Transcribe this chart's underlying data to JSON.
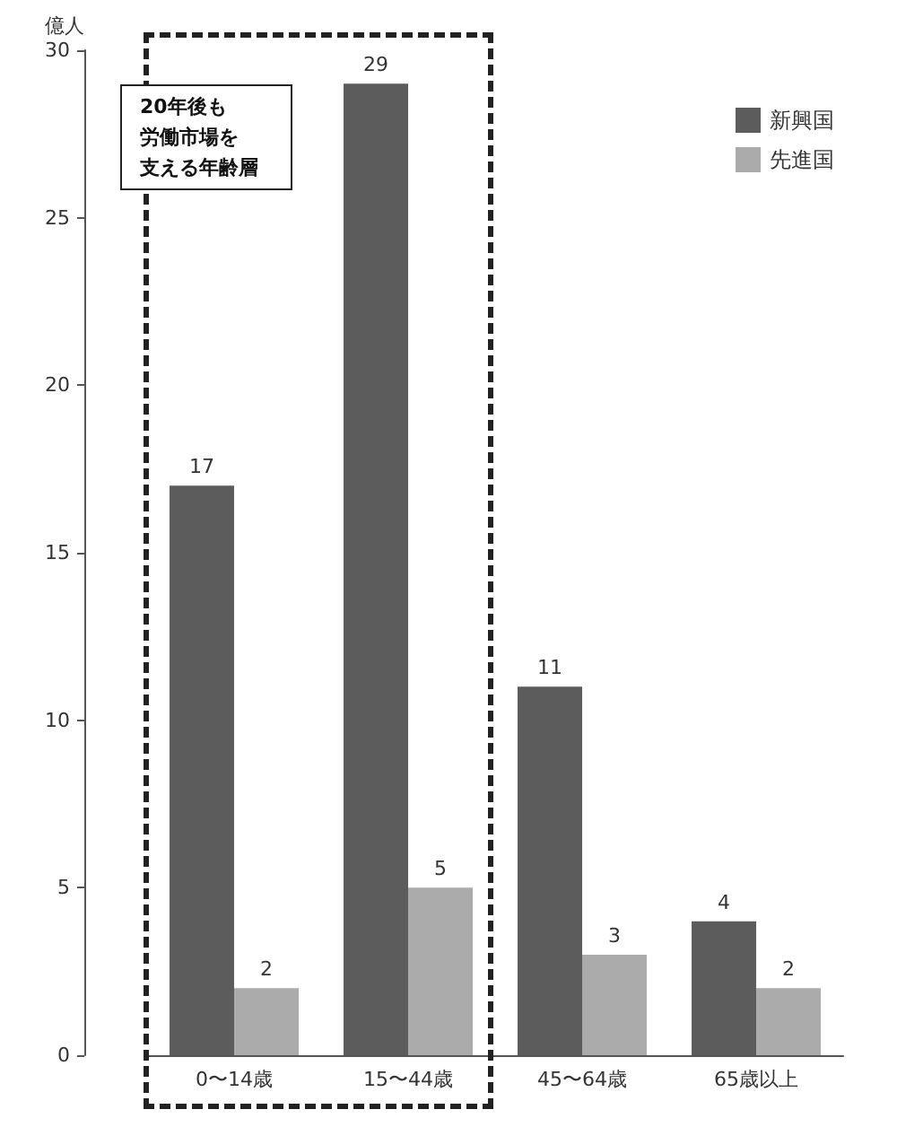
{
  "chart_data": {
    "type": "bar",
    "ylabel": "億人",
    "categories": [
      "0〜14歳",
      "15〜44歳",
      "45〜64歳",
      "65歳以上"
    ],
    "series": [
      {
        "name": "新興国",
        "color": "#5c5c5c",
        "values": [
          17,
          29,
          11,
          4
        ]
      },
      {
        "name": "先進国",
        "color": "#ababab",
        "values": [
          2,
          5,
          3,
          2
        ]
      }
    ],
    "ylim": [
      0,
      30
    ],
    "yticks": [
      0,
      5,
      10,
      15,
      20,
      25,
      30
    ],
    "grid": false,
    "legend": "top right",
    "data_labels": true,
    "annotations": [
      "20年後も労働市場を支える年齢層"
    ]
  }
}
